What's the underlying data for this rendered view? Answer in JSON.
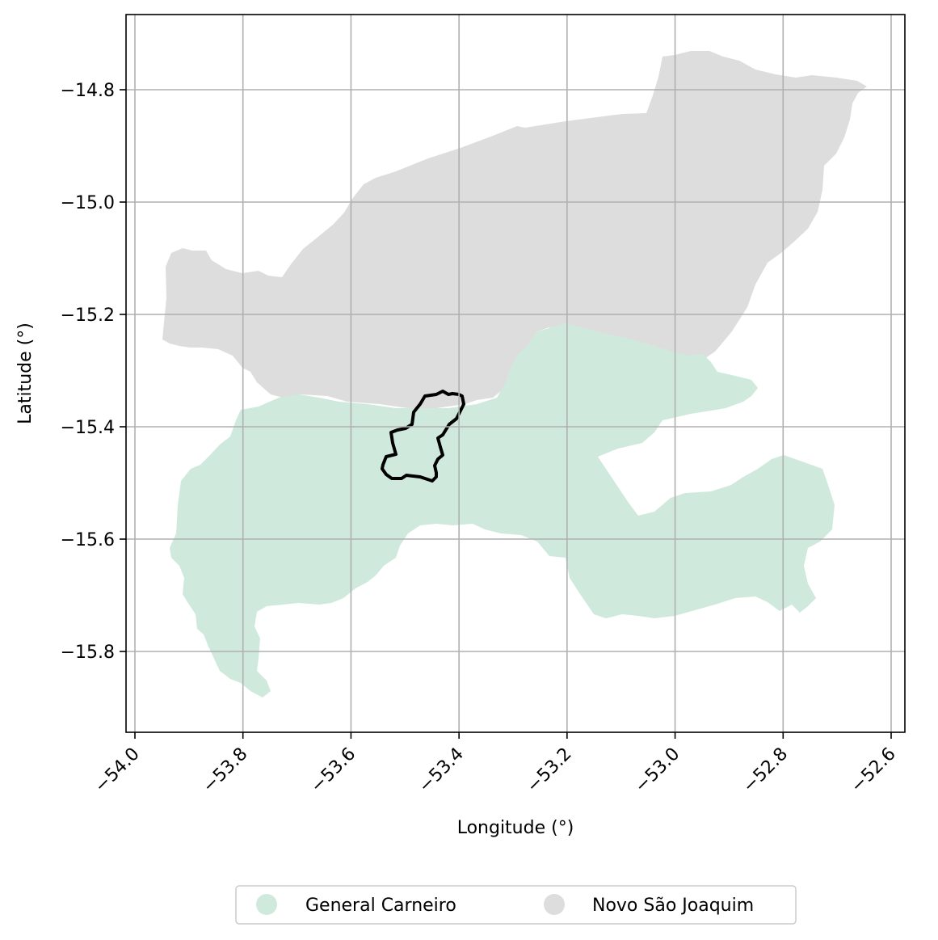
{
  "map": {
    "xlabel": "Longitude (°)",
    "ylabel": "Latitude (°)",
    "x_ticks": [
      "−54.0",
      "−53.8",
      "−53.6",
      "−53.4",
      "−53.2",
      "−53.0",
      "−52.8",
      "−52.6"
    ],
    "y_ticks": [
      "−14.8",
      "−15.0",
      "−15.2",
      "−15.4",
      "−15.6",
      "−15.8"
    ],
    "x_range": [
      -54.0,
      -52.6
    ],
    "y_range": [
      -15.95,
      -14.67
    ],
    "grid": true,
    "legend_position": "bottom-center",
    "regions": [
      {
        "name": "General Carneiro",
        "color": "#cfeadd"
      },
      {
        "name": "Novo São Joaquim",
        "color": "#dddddd"
      }
    ],
    "highlight_outline_color": "#000000"
  }
}
